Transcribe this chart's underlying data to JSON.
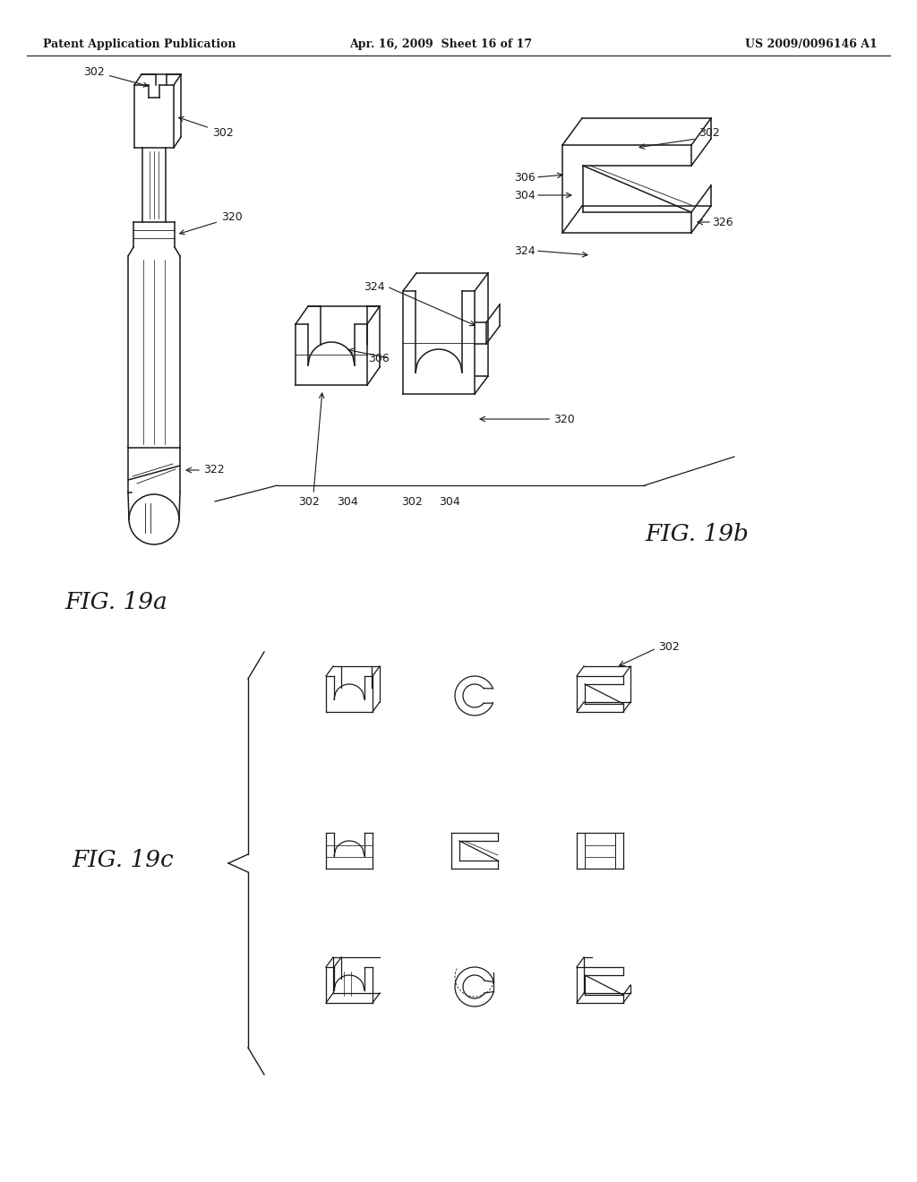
{
  "title_left": "Patent Application Publication",
  "title_center": "Apr. 16, 2009  Sheet 16 of 17",
  "title_right": "US 2009/0096146 A1",
  "fig_19a_label": "FIG. 19a",
  "fig_19b_label": "FIG. 19b",
  "fig_19c_label": "FIG. 19c",
  "background_color": "#ffffff",
  "line_color": "#1a1a1a"
}
